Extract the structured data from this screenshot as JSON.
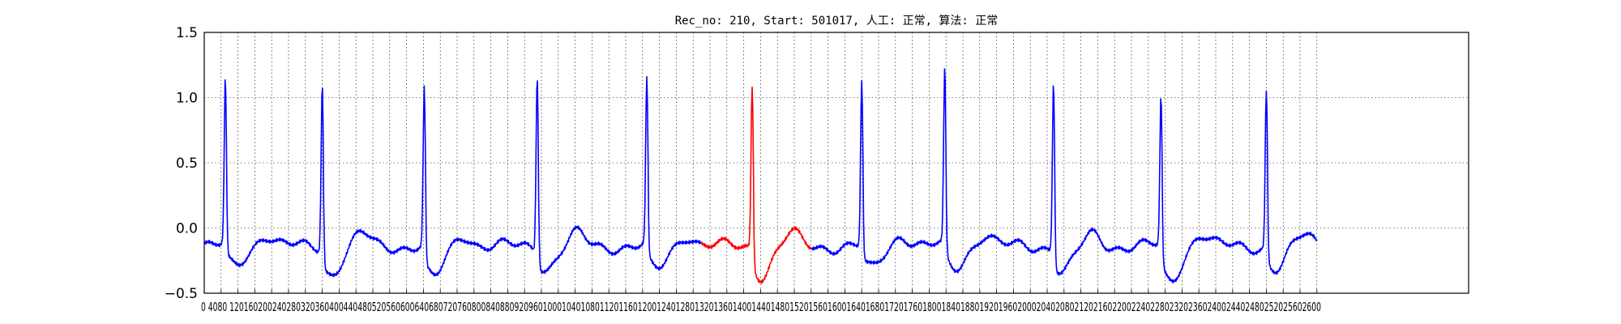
{
  "chart_data": {
    "type": "line",
    "title": "Rec_no: 210, Start: 501017, 人工: 正常, 算法: 正常",
    "xlabel": "",
    "ylabel": "",
    "xlim": [
      0,
      3000
    ],
    "ylim": [
      -0.5,
      1.5
    ],
    "grid": true,
    "y_ticks": [
      "−0.5",
      "0.0",
      "0.5",
      "1.0",
      "1.5"
    ],
    "y_tick_values": [
      -0.5,
      0.0,
      0.5,
      1.0,
      1.5
    ],
    "x_tick_step": 40,
    "x_tick_text": "0 4080 12016020024028032036040044048052056060064068072076080084088092096010001040108011201160120012401280132013601400144014801520156016001640168017201760180018401880192019602000204020802120216022002240228023202360240024402480252025602600",
    "beats": [
      {
        "t": 50,
        "peak": 1.15,
        "post_min": -0.27
      },
      {
        "t": 280,
        "peak": 1.09,
        "post_min": -0.33
      },
      {
        "t": 522,
        "peak": 1.09,
        "post_min": -0.38
      },
      {
        "t": 790,
        "peak": 1.15,
        "post_min": -0.28
      },
      {
        "t": 1050,
        "peak": 1.16,
        "post_min": -0.31
      },
      {
        "t": 1300,
        "peak": 1.08,
        "post_min": -0.34
      },
      {
        "t": 1560,
        "peak": 1.13,
        "post_min": -0.3
      },
      {
        "t": 1757,
        "peak": 1.24,
        "post_min": -0.29
      },
      {
        "t": 2015,
        "peak": 1.12,
        "post_min": -0.32
      },
      {
        "t": 2270,
        "peak": 1.02,
        "post_min": -0.4
      },
      {
        "t": 2520,
        "peak": 1.05,
        "post_min": -0.3
      }
    ],
    "signal_end": 2640,
    "series": [
      {
        "segment": "normal",
        "color": "#0000ff",
        "x_range": [
          0,
          1180
        ]
      },
      {
        "segment": "highlight",
        "color": "#ff0000",
        "x_range": [
          1180,
          1440
        ]
      },
      {
        "segment": "normal",
        "color": "#0000ff",
        "x_range": [
          1440,
          2640
        ]
      }
    ]
  }
}
